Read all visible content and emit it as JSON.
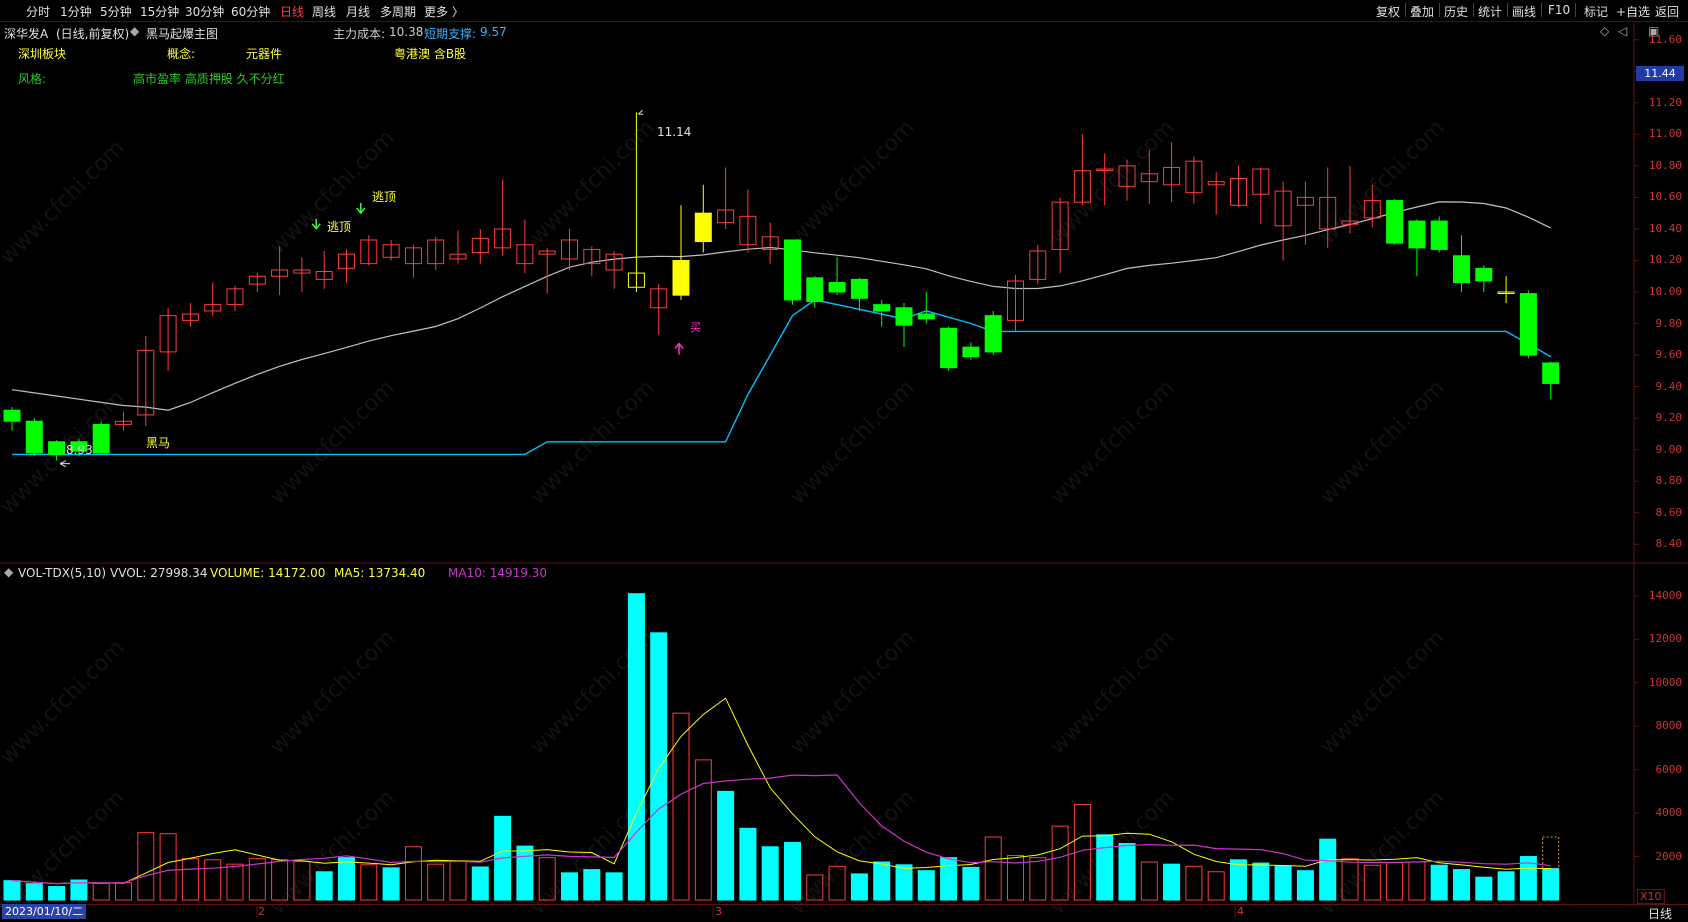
{
  "toolbar": {
    "periods": [
      "分时",
      "1分钟",
      "5分钟",
      "15分钟",
      "30分钟",
      "60分钟",
      "日线",
      "周线",
      "月线",
      "多周期",
      "更多 〉"
    ],
    "active_period": "日线",
    "right_buttons": [
      "复权",
      "叠加",
      "历史",
      "统计",
      "画线",
      "F10",
      "标记",
      "+自选",
      "返回"
    ]
  },
  "header": {
    "stock_name": "深华发A",
    "chart_mode": "(日线,前复权)",
    "indicator_name": "黑马起爆主图",
    "main_cost_label": "主力成本:",
    "main_cost_value": "10.38",
    "support_label": "短期支撑:",
    "support_value": "9.57"
  },
  "tags": {
    "board_label": "深圳板块",
    "concept_label": "概念:",
    "concept_value": "元器件",
    "concept_extra": "粤港澳 含B股",
    "style_label": "风格:",
    "style_value": "高市盈率 高质押股 久不分红"
  },
  "annotations": {
    "high_price": "11.14",
    "low_price": "8.93",
    "escape_top_1": "逃顶",
    "escape_top_2": "逃顶",
    "dark_horse": "黑马",
    "buy": "买"
  },
  "price_axis": {
    "labels": [
      "11.60",
      "11.40",
      "11.20",
      "11.00",
      "10.80",
      "10.60",
      "10.40",
      "10.20",
      "10.00",
      "9.80",
      "9.60",
      "9.40",
      "9.20",
      "9.00",
      "8.80",
      "8.60",
      "8.40"
    ],
    "current_price": "11.44"
  },
  "volume_panel": {
    "title": "VOL-TDX(5,10)",
    "vvol_label": "VVOL: 27998.34",
    "volume_label": "VOLUME: 14172.00",
    "ma5_label": "MA5: 13734.40",
    "ma10_label": "MA10: 14919.30",
    "axis_labels": [
      "14000",
      "12000",
      "10000",
      "8000",
      "6000",
      "4000",
      "2000"
    ],
    "unit": "X10"
  },
  "date_axis": {
    "start_date": "2023/01/10/二",
    "months": [
      "2",
      "3",
      "4"
    ]
  },
  "bottom_tab": "日线",
  "watermark_text": "www.cfchi.com",
  "colors": {
    "up": "#ff3c3c",
    "down": "#00ff00",
    "volume_down": "#00ffff",
    "support_line": "#00bfff",
    "ma_line": "#c0c0c0",
    "ma5_line": "#ffff00",
    "ma10_line": "#cc33cc",
    "highlight": "#ffff00"
  },
  "chart_data": {
    "type": "candlestick",
    "candles": [
      {
        "o": 9.18,
        "c": 9.25,
        "h": 9.27,
        "l": 9.12,
        "d": "down"
      },
      {
        "o": 9.18,
        "c": 8.98,
        "h": 9.2,
        "l": 8.96,
        "d": "down"
      },
      {
        "o": 9.05,
        "c": 8.97,
        "h": 9.06,
        "l": 8.93,
        "d": "down"
      },
      {
        "o": 9.05,
        "c": 8.99,
        "h": 9.07,
        "l": 8.96,
        "d": "down"
      },
      {
        "o": 9.16,
        "c": 8.98,
        "h": 9.18,
        "l": 8.97,
        "d": "down"
      },
      {
        "o": 9.16,
        "c": 9.18,
        "h": 9.24,
        "l": 9.12,
        "d": "up"
      },
      {
        "o": 9.22,
        "c": 9.63,
        "h": 9.72,
        "l": 9.15,
        "d": "up"
      },
      {
        "o": 9.62,
        "c": 9.85,
        "h": 9.9,
        "l": 9.5,
        "d": "up"
      },
      {
        "o": 9.82,
        "c": 9.86,
        "h": 9.93,
        "l": 9.78,
        "d": "up"
      },
      {
        "o": 9.88,
        "c": 9.92,
        "h": 10.06,
        "l": 9.85,
        "d": "up"
      },
      {
        "o": 9.92,
        "c": 10.02,
        "h": 10.04,
        "l": 9.88,
        "d": "up"
      },
      {
        "o": 10.05,
        "c": 10.1,
        "h": 10.12,
        "l": 10.0,
        "d": "up"
      },
      {
        "o": 10.1,
        "c": 10.14,
        "h": 10.29,
        "l": 9.98,
        "d": "up"
      },
      {
        "o": 10.12,
        "c": 10.14,
        "h": 10.22,
        "l": 10.0,
        "d": "up"
      },
      {
        "o": 10.08,
        "c": 10.13,
        "h": 10.26,
        "l": 10.02,
        "d": "up"
      },
      {
        "o": 10.15,
        "c": 10.24,
        "h": 10.27,
        "l": 10.06,
        "d": "up"
      },
      {
        "o": 10.18,
        "c": 10.33,
        "h": 10.36,
        "l": 10.17,
        "d": "up"
      },
      {
        "o": 10.22,
        "c": 10.3,
        "h": 10.33,
        "l": 10.2,
        "d": "up"
      },
      {
        "o": 10.18,
        "c": 10.28,
        "h": 10.3,
        "l": 10.09,
        "d": "up"
      },
      {
        "o": 10.18,
        "c": 10.33,
        "h": 10.35,
        "l": 10.14,
        "d": "up"
      },
      {
        "o": 10.21,
        "c": 10.24,
        "h": 10.39,
        "l": 10.18,
        "d": "up"
      },
      {
        "o": 10.25,
        "c": 10.34,
        "h": 10.4,
        "l": 10.18,
        "d": "up"
      },
      {
        "o": 10.28,
        "c": 10.4,
        "h": 10.71,
        "l": 10.23,
        "d": "up"
      },
      {
        "o": 10.18,
        "c": 10.3,
        "h": 10.46,
        "l": 10.12,
        "d": "up"
      },
      {
        "o": 10.24,
        "c": 10.26,
        "h": 10.28,
        "l": 9.99,
        "d": "up"
      },
      {
        "o": 10.21,
        "c": 10.33,
        "h": 10.4,
        "l": 10.14,
        "d": "up"
      },
      {
        "o": 10.18,
        "c": 10.27,
        "h": 10.29,
        "l": 10.1,
        "d": "up"
      },
      {
        "o": 10.14,
        "c": 10.24,
        "h": 10.26,
        "l": 10.02,
        "d": "up"
      },
      {
        "o": 10.03,
        "c": 10.12,
        "h": 11.14,
        "l": 10.0,
        "d": "doji"
      },
      {
        "o": 9.9,
        "c": 10.02,
        "h": 10.05,
        "l": 9.73,
        "d": "up"
      },
      {
        "o": 10.2,
        "c": 9.98,
        "h": 10.55,
        "l": 9.95,
        "d": "yellow"
      },
      {
        "o": 10.5,
        "c": 10.32,
        "h": 10.68,
        "l": 10.25,
        "d": "yellow"
      },
      {
        "o": 10.44,
        "c": 10.52,
        "h": 10.79,
        "l": 10.4,
        "d": "up"
      },
      {
        "o": 10.3,
        "c": 10.48,
        "h": 10.65,
        "l": 10.25,
        "d": "up"
      },
      {
        "o": 10.27,
        "c": 10.35,
        "h": 10.44,
        "l": 10.18,
        "d": "up"
      },
      {
        "o": 10.33,
        "c": 9.95,
        "h": 10.33,
        "l": 9.92,
        "d": "down"
      },
      {
        "o": 10.09,
        "c": 9.94,
        "h": 10.1,
        "l": 9.9,
        "d": "down"
      },
      {
        "o": 10.06,
        "c": 10.0,
        "h": 10.22,
        "l": 9.98,
        "d": "down"
      },
      {
        "o": 10.08,
        "c": 9.96,
        "h": 10.09,
        "l": 9.88,
        "d": "down"
      },
      {
        "o": 9.92,
        "c": 9.88,
        "h": 9.95,
        "l": 9.78,
        "d": "down"
      },
      {
        "o": 9.9,
        "c": 9.79,
        "h": 9.93,
        "l": 9.65,
        "d": "down"
      },
      {
        "o": 9.86,
        "c": 9.83,
        "h": 10.0,
        "l": 9.8,
        "d": "down"
      },
      {
        "o": 9.77,
        "c": 9.52,
        "h": 9.78,
        "l": 9.5,
        "d": "down"
      },
      {
        "o": 9.65,
        "c": 9.59,
        "h": 9.68,
        "l": 9.57,
        "d": "down"
      },
      {
        "o": 9.85,
        "c": 9.62,
        "h": 9.88,
        "l": 9.6,
        "d": "down"
      },
      {
        "o": 9.82,
        "c": 10.07,
        "h": 10.11,
        "l": 9.75,
        "d": "up"
      },
      {
        "o": 10.08,
        "c": 10.26,
        "h": 10.3,
        "l": 10.05,
        "d": "up"
      },
      {
        "o": 10.27,
        "c": 10.57,
        "h": 10.6,
        "l": 10.12,
        "d": "up"
      },
      {
        "o": 10.57,
        "c": 10.77,
        "h": 11.0,
        "l": 10.55,
        "d": "up"
      },
      {
        "o": 10.78,
        "c": 10.78,
        "h": 10.88,
        "l": 10.55,
        "d": "up"
      },
      {
        "o": 10.67,
        "c": 10.8,
        "h": 10.84,
        "l": 10.58,
        "d": "up"
      },
      {
        "o": 10.75,
        "c": 10.7,
        "h": 10.9,
        "l": 10.56,
        "d": "up"
      },
      {
        "o": 10.68,
        "c": 10.79,
        "h": 10.95,
        "l": 10.57,
        "d": "up"
      },
      {
        "o": 10.63,
        "c": 10.83,
        "h": 10.86,
        "l": 10.56,
        "d": "up"
      },
      {
        "o": 10.68,
        "c": 10.7,
        "h": 10.76,
        "l": 10.49,
        "d": "up"
      },
      {
        "o": 10.55,
        "c": 10.72,
        "h": 10.8,
        "l": 10.54,
        "d": "up"
      },
      {
        "o": 10.62,
        "c": 10.78,
        "h": 10.79,
        "l": 10.43,
        "d": "up"
      },
      {
        "o": 10.42,
        "c": 10.64,
        "h": 10.7,
        "l": 10.2,
        "d": "up"
      },
      {
        "o": 10.6,
        "c": 10.55,
        "h": 10.7,
        "l": 10.3,
        "d": "up"
      },
      {
        "o": 10.4,
        "c": 10.6,
        "h": 10.79,
        "l": 10.28,
        "d": "up"
      },
      {
        "o": 10.45,
        "c": 10.43,
        "h": 10.8,
        "l": 10.37,
        "d": "up"
      },
      {
        "o": 10.47,
        "c": 10.58,
        "h": 10.68,
        "l": 10.41,
        "d": "up"
      },
      {
        "o": 10.58,
        "c": 10.31,
        "h": 10.59,
        "l": 10.3,
        "d": "down"
      },
      {
        "o": 10.45,
        "c": 10.28,
        "h": 10.46,
        "l": 10.1,
        "d": "down"
      },
      {
        "o": 10.45,
        "c": 10.27,
        "h": 10.48,
        "l": 10.25,
        "d": "down"
      },
      {
        "o": 10.23,
        "c": 10.06,
        "h": 10.36,
        "l": 10.0,
        "d": "down"
      },
      {
        "o": 10.15,
        "c": 10.07,
        "h": 10.17,
        "l": 10.0,
        "d": "down"
      },
      {
        "o": 10.0,
        "c": 10.0,
        "h": 10.1,
        "l": 9.93,
        "d": "yellowdoji"
      },
      {
        "o": 9.99,
        "c": 9.6,
        "h": 10.01,
        "l": 9.58,
        "d": "down"
      },
      {
        "o": 9.55,
        "c": 9.42,
        "h": 9.56,
        "l": 9.32,
        "d": "down"
      }
    ],
    "volumes": [
      {
        "v": 890,
        "d": "down"
      },
      {
        "v": 750,
        "d": "down"
      },
      {
        "v": 620,
        "d": "down"
      },
      {
        "v": 920,
        "d": "down"
      },
      {
        "v": 760,
        "d": "up"
      },
      {
        "v": 800,
        "d": "up"
      },
      {
        "v": 3100,
        "d": "up"
      },
      {
        "v": 3050,
        "d": "up"
      },
      {
        "v": 1900,
        "d": "up"
      },
      {
        "v": 1850,
        "d": "up"
      },
      {
        "v": 1650,
        "d": "up"
      },
      {
        "v": 1900,
        "d": "up"
      },
      {
        "v": 1850,
        "d": "up"
      },
      {
        "v": 1780,
        "d": "up"
      },
      {
        "v": 1300,
        "d": "down"
      },
      {
        "v": 1950,
        "d": "down"
      },
      {
        "v": 1620,
        "d": "up"
      },
      {
        "v": 1480,
        "d": "down"
      },
      {
        "v": 2450,
        "d": "up"
      },
      {
        "v": 1650,
        "d": "up"
      },
      {
        "v": 1800,
        "d": "up"
      },
      {
        "v": 1520,
        "d": "down"
      },
      {
        "v": 3850,
        "d": "down"
      },
      {
        "v": 2480,
        "d": "down"
      },
      {
        "v": 1950,
        "d": "up"
      },
      {
        "v": 1250,
        "d": "down"
      },
      {
        "v": 1400,
        "d": "down"
      },
      {
        "v": 1250,
        "d": "down"
      },
      {
        "v": 14100,
        "d": "down"
      },
      {
        "v": 12300,
        "d": "down"
      },
      {
        "v": 8600,
        "d": "up"
      },
      {
        "v": 6450,
        "d": "up"
      },
      {
        "v": 5000,
        "d": "down"
      },
      {
        "v": 3300,
        "d": "down"
      },
      {
        "v": 2450,
        "d": "down"
      },
      {
        "v": 2650,
        "d": "down"
      },
      {
        "v": 1150,
        "d": "up"
      },
      {
        "v": 1550,
        "d": "up"
      },
      {
        "v": 1200,
        "d": "down"
      },
      {
        "v": 1750,
        "d": "down"
      },
      {
        "v": 1620,
        "d": "down"
      },
      {
        "v": 1350,
        "d": "down"
      },
      {
        "v": 1950,
        "d": "down"
      },
      {
        "v": 1500,
        "d": "down"
      },
      {
        "v": 2900,
        "d": "up"
      },
      {
        "v": 2050,
        "d": "up"
      },
      {
        "v": 1950,
        "d": "up"
      },
      {
        "v": 3400,
        "d": "up"
      },
      {
        "v": 4400,
        "d": "up"
      },
      {
        "v": 3000,
        "d": "down"
      },
      {
        "v": 2600,
        "d": "down"
      },
      {
        "v": 1750,
        "d": "up"
      },
      {
        "v": 1650,
        "d": "down"
      },
      {
        "v": 1550,
        "d": "up"
      },
      {
        "v": 1300,
        "d": "up"
      },
      {
        "v": 1850,
        "d": "down"
      },
      {
        "v": 1700,
        "d": "down"
      },
      {
        "v": 1550,
        "d": "down"
      },
      {
        "v": 1350,
        "d": "down"
      },
      {
        "v": 2800,
        "d": "down"
      },
      {
        "v": 1900,
        "d": "up"
      },
      {
        "v": 1600,
        "d": "up"
      },
      {
        "v": 1720,
        "d": "up"
      },
      {
        "v": 1750,
        "d": "up"
      },
      {
        "v": 1600,
        "d": "down"
      },
      {
        "v": 1400,
        "d": "down"
      },
      {
        "v": 1050,
        "d": "down"
      },
      {
        "v": 1300,
        "d": "down"
      },
      {
        "v": 2000,
        "d": "down"
      },
      {
        "v": 1450,
        "d": "down"
      }
    ],
    "ylim": [
      8.3,
      11.7
    ],
    "vol_ylim": [
      0,
      14500
    ]
  }
}
